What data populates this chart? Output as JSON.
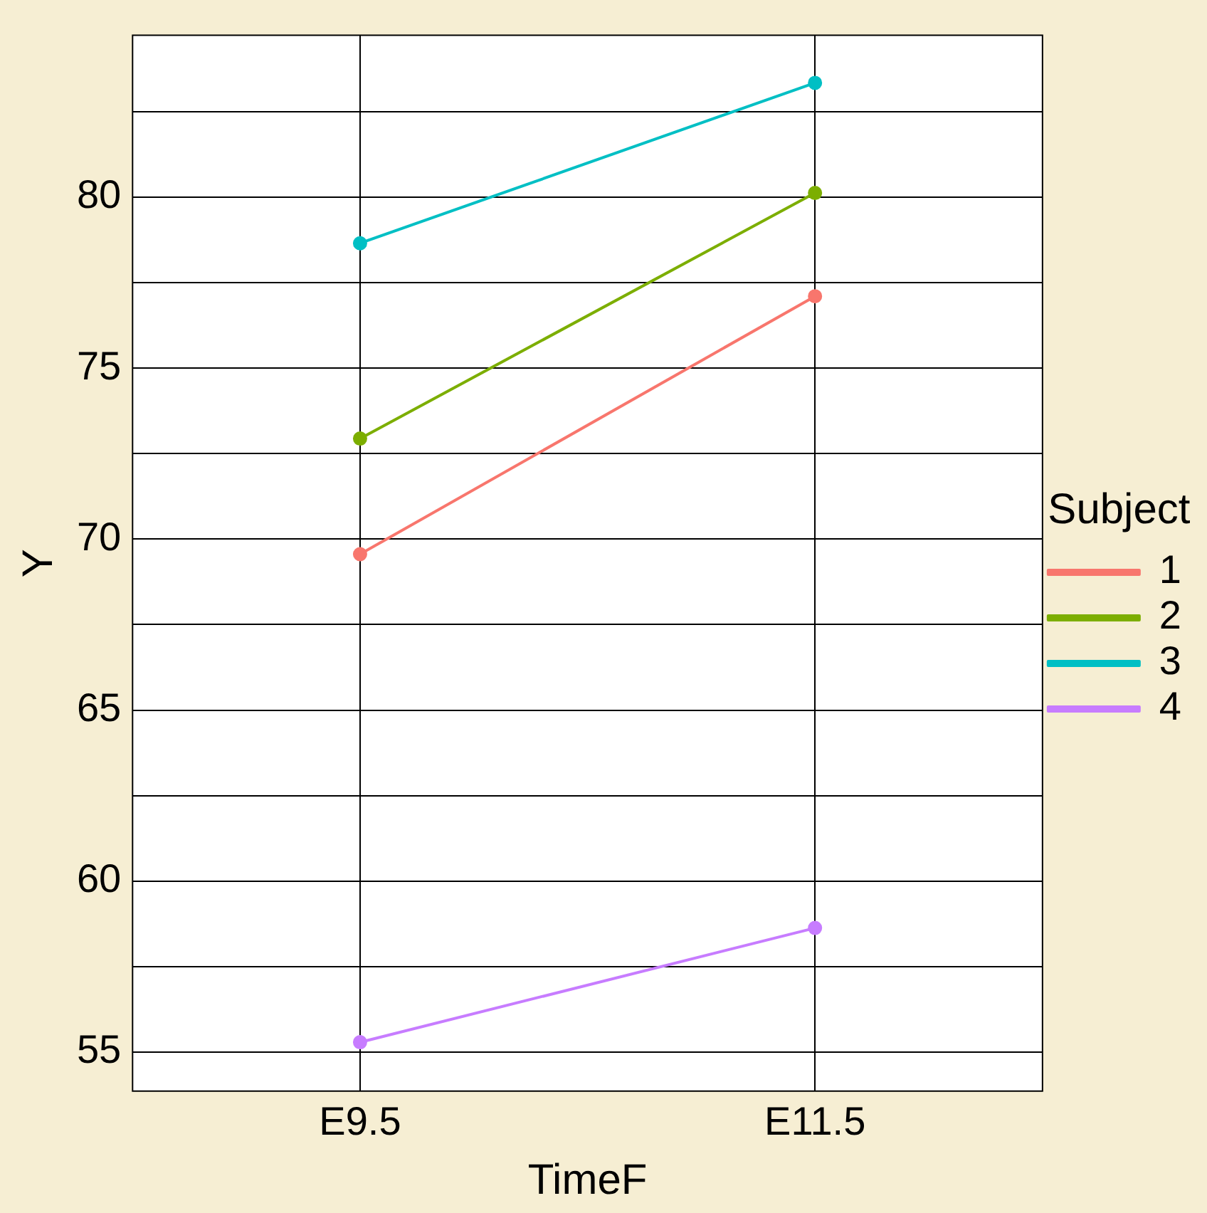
{
  "chart_data": {
    "type": "line",
    "xlabel": "TimeF",
    "ylabel": "Y",
    "legend_title": "Subject",
    "categories": [
      "E9.5",
      "E11.5"
    ],
    "series": [
      {
        "name": "1",
        "color": "#f8766d",
        "values": [
          69.56,
          77.1
        ]
      },
      {
        "name": "2",
        "color": "#7cae00",
        "values": [
          72.94,
          80.12
        ]
      },
      {
        "name": "3",
        "color": "#00bfc4",
        "values": [
          78.65,
          83.34
        ]
      },
      {
        "name": "4",
        "color": "#c77cff",
        "values": [
          55.29,
          58.63
        ]
      }
    ],
    "ylim": [
      53.86,
      84.73
    ],
    "yticks": [
      55,
      {
        "value": 57.5,
        "label": null
      },
      60,
      {
        "value": 62.5,
        "label": null
      },
      65,
      {
        "value": 67.5,
        "label": null
      },
      70,
      {
        "value": 72.5,
        "label": null
      },
      75,
      {
        "value": 77.5,
        "label": null
      },
      80,
      {
        "value": 82.5,
        "label": null
      }
    ],
    "grid": true,
    "legend": "right",
    "marker": "circle",
    "line_style": "solid"
  }
}
